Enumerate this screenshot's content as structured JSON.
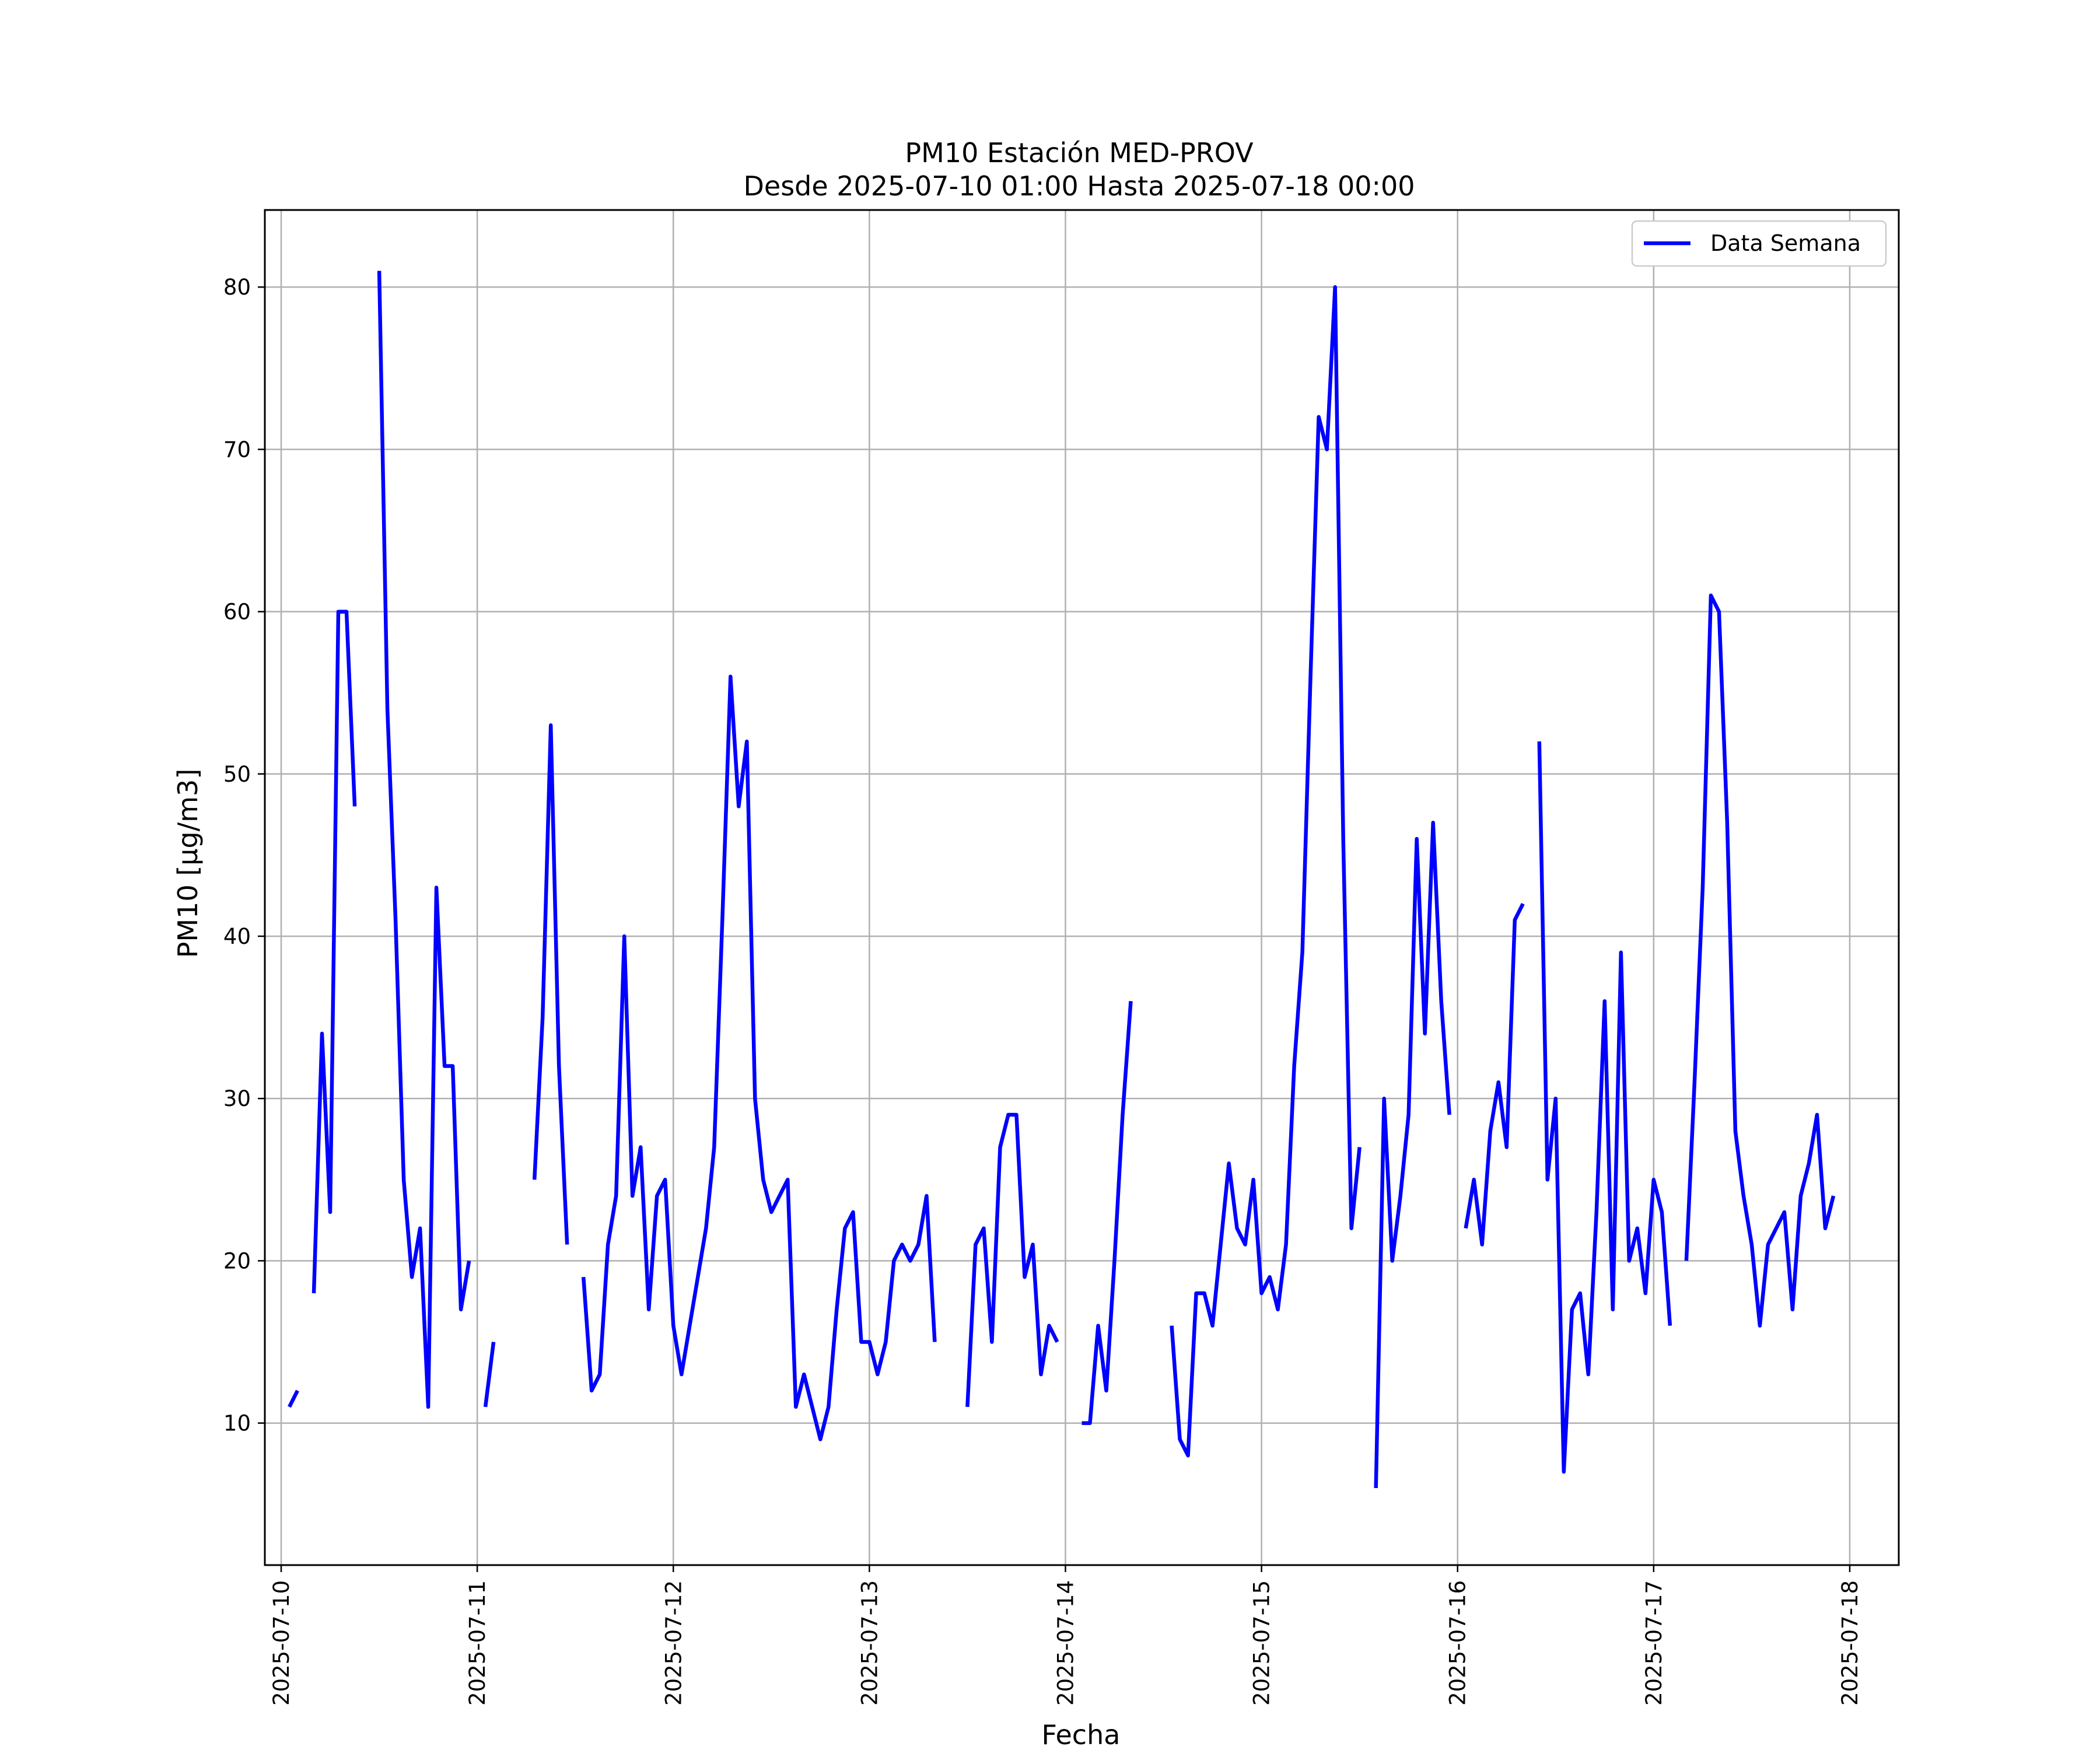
{
  "chart_data": {
    "type": "line",
    "title": "PM10 Estación MED-PROV",
    "subtitle": "Desde 2025-07-10 01:00 Hasta 2025-07-18 00:00",
    "xlabel": "Fecha",
    "ylabel": "PM10 [μg/m3]",
    "xlim": [
      "2025-07-09 22:00",
      "2025-07-18 06:00"
    ],
    "ylim": [
      1.25,
      84.75
    ],
    "x_ticks": [
      "2025-07-10",
      "2025-07-11",
      "2025-07-12",
      "2025-07-13",
      "2025-07-14",
      "2025-07-15",
      "2025-07-16",
      "2025-07-17",
      "2025-07-18"
    ],
    "y_ticks": [
      10,
      20,
      30,
      40,
      50,
      60,
      70,
      80
    ],
    "grid": true,
    "legend_position": "top-right",
    "series": [
      {
        "name": "Data Semana",
        "color": "#0000ff",
        "segments": [
          [
            [
              "2025-07-10 01:00",
              11
            ],
            [
              "2025-07-10 02:00",
              12
            ]
          ],
          [
            [
              "2025-07-10 04:00",
              18
            ],
            [
              "2025-07-10 05:00",
              34
            ],
            [
              "2025-07-10 06:00",
              23
            ],
            [
              "2025-07-10 07:00",
              60
            ],
            [
              "2025-07-10 08:00",
              60
            ],
            [
              "2025-07-10 09:00",
              48
            ]
          ],
          [
            [
              "2025-07-10 12:00",
              81
            ],
            [
              "2025-07-10 13:00",
              54
            ],
            [
              "2025-07-10 14:00",
              41
            ],
            [
              "2025-07-10 15:00",
              25
            ],
            [
              "2025-07-10 16:00",
              19
            ],
            [
              "2025-07-10 17:00",
              22
            ],
            [
              "2025-07-10 18:00",
              11
            ],
            [
              "2025-07-10 19:00",
              43
            ],
            [
              "2025-07-10 20:00",
              32
            ],
            [
              "2025-07-10 21:00",
              32
            ],
            [
              "2025-07-10 22:00",
              17
            ],
            [
              "2025-07-10 23:00",
              20
            ]
          ],
          [
            [
              "2025-07-11 01:00",
              11
            ],
            [
              "2025-07-11 02:00",
              15
            ]
          ],
          [
            [
              "2025-07-11 07:00",
              25
            ],
            [
              "2025-07-11 08:00",
              35
            ],
            [
              "2025-07-11 09:00",
              53
            ],
            [
              "2025-07-11 10:00",
              32
            ],
            [
              "2025-07-11 11:00",
              21
            ]
          ],
          [
            [
              "2025-07-11 13:00",
              19
            ],
            [
              "2025-07-11 14:00",
              12
            ],
            [
              "2025-07-11 15:00",
              13
            ],
            [
              "2025-07-11 16:00",
              21
            ],
            [
              "2025-07-11 17:00",
              24
            ],
            [
              "2025-07-11 18:00",
              40
            ],
            [
              "2025-07-11 19:00",
              24
            ],
            [
              "2025-07-11 20:00",
              27
            ],
            [
              "2025-07-11 21:00",
              17
            ],
            [
              "2025-07-11 22:00",
              24
            ],
            [
              "2025-07-11 23:00",
              25
            ],
            [
              "2025-07-12 00:00",
              16
            ],
            [
              "2025-07-12 01:00",
              13
            ],
            [
              "2025-07-12 02:00",
              16
            ],
            [
              "2025-07-12 03:00",
              19
            ],
            [
              "2025-07-12 04:00",
              22
            ],
            [
              "2025-07-12 05:00",
              27
            ],
            [
              "2025-07-12 06:00",
              41
            ],
            [
              "2025-07-12 07:00",
              56
            ],
            [
              "2025-07-12 08:00",
              48
            ],
            [
              "2025-07-12 09:00",
              52
            ],
            [
              "2025-07-12 10:00",
              30
            ],
            [
              "2025-07-12 11:00",
              25
            ],
            [
              "2025-07-12 12:00",
              23
            ],
            [
              "2025-07-12 13:00",
              24
            ],
            [
              "2025-07-12 14:00",
              25
            ],
            [
              "2025-07-12 15:00",
              11
            ],
            [
              "2025-07-12 16:00",
              13
            ],
            [
              "2025-07-12 17:00",
              11
            ],
            [
              "2025-07-12 18:00",
              9
            ],
            [
              "2025-07-12 19:00",
              11
            ],
            [
              "2025-07-12 20:00",
              17
            ],
            [
              "2025-07-12 21:00",
              22
            ],
            [
              "2025-07-12 22:00",
              23
            ],
            [
              "2025-07-12 23:00",
              15
            ],
            [
              "2025-07-13 00:00",
              15
            ],
            [
              "2025-07-13 01:00",
              13
            ],
            [
              "2025-07-13 02:00",
              15
            ],
            [
              "2025-07-13 03:00",
              20
            ],
            [
              "2025-07-13 04:00",
              21
            ],
            [
              "2025-07-13 05:00",
              20
            ],
            [
              "2025-07-13 06:00",
              21
            ],
            [
              "2025-07-13 07:00",
              24
            ],
            [
              "2025-07-13 08:00",
              15
            ]
          ],
          [
            [
              "2025-07-13 12:00",
              11
            ],
            [
              "2025-07-13 13:00",
              21
            ],
            [
              "2025-07-13 14:00",
              22
            ],
            [
              "2025-07-13 15:00",
              15
            ],
            [
              "2025-07-13 16:00",
              27
            ],
            [
              "2025-07-13 17:00",
              29
            ],
            [
              "2025-07-13 18:00",
              29
            ],
            [
              "2025-07-13 19:00",
              19
            ],
            [
              "2025-07-13 20:00",
              21
            ],
            [
              "2025-07-13 21:00",
              13
            ],
            [
              "2025-07-13 22:00",
              16
            ],
            [
              "2025-07-13 23:00",
              15
            ]
          ],
          [
            [
              "2025-07-14 02:00",
              10
            ],
            [
              "2025-07-14 03:00",
              10
            ],
            [
              "2025-07-14 04:00",
              16
            ],
            [
              "2025-07-14 05:00",
              12
            ],
            [
              "2025-07-14 06:00",
              20
            ],
            [
              "2025-07-14 07:00",
              29
            ],
            [
              "2025-07-14 08:00",
              36
            ]
          ],
          [
            [
              "2025-07-14 13:00",
              16
            ],
            [
              "2025-07-14 14:00",
              9
            ],
            [
              "2025-07-14 15:00",
              8
            ],
            [
              "2025-07-14 16:00",
              18
            ],
            [
              "2025-07-14 17:00",
              18
            ],
            [
              "2025-07-14 18:00",
              16
            ],
            [
              "2025-07-14 19:00",
              21
            ],
            [
              "2025-07-14 20:00",
              26
            ],
            [
              "2025-07-14 21:00",
              22
            ],
            [
              "2025-07-14 22:00",
              21
            ],
            [
              "2025-07-14 23:00",
              25
            ],
            [
              "2025-07-15 00:00",
              18
            ],
            [
              "2025-07-15 01:00",
              19
            ],
            [
              "2025-07-15 02:00",
              17
            ],
            [
              "2025-07-15 03:00",
              21
            ],
            [
              "2025-07-15 04:00",
              32
            ],
            [
              "2025-07-15 05:00",
              39
            ],
            [
              "2025-07-15 06:00",
              56
            ],
            [
              "2025-07-15 07:00",
              72
            ],
            [
              "2025-07-15 08:00",
              70
            ],
            [
              "2025-07-15 09:00",
              80
            ],
            [
              "2025-07-15 10:00",
              46
            ],
            [
              "2025-07-15 11:00",
              22
            ],
            [
              "2025-07-15 12:00",
              27
            ]
          ],
          [
            [
              "2025-07-15 14:00",
              6
            ],
            [
              "2025-07-15 15:00",
              30
            ],
            [
              "2025-07-15 16:00",
              20
            ],
            [
              "2025-07-15 17:00",
              24
            ],
            [
              "2025-07-15 18:00",
              29
            ],
            [
              "2025-07-15 19:00",
              46
            ],
            [
              "2025-07-15 20:00",
              34
            ],
            [
              "2025-07-15 21:00",
              47
            ],
            [
              "2025-07-15 22:00",
              36
            ],
            [
              "2025-07-15 23:00",
              29
            ]
          ],
          [
            [
              "2025-07-16 01:00",
              22
            ],
            [
              "2025-07-16 02:00",
              25
            ],
            [
              "2025-07-16 03:00",
              21
            ],
            [
              "2025-07-16 04:00",
              28
            ],
            [
              "2025-07-16 05:00",
              31
            ],
            [
              "2025-07-16 06:00",
              27
            ],
            [
              "2025-07-16 07:00",
              41
            ],
            [
              "2025-07-16 08:00",
              42
            ]
          ],
          [
            [
              "2025-07-16 10:00",
              52
            ],
            [
              "2025-07-16 11:00",
              25
            ],
            [
              "2025-07-16 12:00",
              30
            ],
            [
              "2025-07-16 13:00",
              7
            ],
            [
              "2025-07-16 14:00",
              17
            ],
            [
              "2025-07-16 15:00",
              18
            ],
            [
              "2025-07-16 16:00",
              13
            ],
            [
              "2025-07-16 17:00",
              23
            ],
            [
              "2025-07-16 18:00",
              36
            ],
            [
              "2025-07-16 19:00",
              17
            ],
            [
              "2025-07-16 20:00",
              39
            ],
            [
              "2025-07-16 21:00",
              20
            ],
            [
              "2025-07-16 22:00",
              22
            ],
            [
              "2025-07-16 23:00",
              18
            ],
            [
              "2025-07-17 00:00",
              25
            ],
            [
              "2025-07-17 01:00",
              23
            ],
            [
              "2025-07-17 02:00",
              16
            ]
          ],
          [
            [
              "2025-07-17 04:00",
              20
            ],
            [
              "2025-07-17 05:00",
              31
            ],
            [
              "2025-07-17 06:00",
              43
            ],
            [
              "2025-07-17 07:00",
              61
            ],
            [
              "2025-07-17 08:00",
              60
            ],
            [
              "2025-07-17 09:00",
              47
            ],
            [
              "2025-07-17 10:00",
              28
            ],
            [
              "2025-07-17 11:00",
              24
            ],
            [
              "2025-07-17 12:00",
              21
            ],
            [
              "2025-07-17 13:00",
              16
            ],
            [
              "2025-07-17 14:00",
              21
            ],
            [
              "2025-07-17 15:00",
              22
            ],
            [
              "2025-07-17 16:00",
              23
            ],
            [
              "2025-07-17 17:00",
              17
            ],
            [
              "2025-07-17 18:00",
              24
            ],
            [
              "2025-07-17 19:00",
              26
            ],
            [
              "2025-07-17 20:00",
              29
            ],
            [
              "2025-07-17 21:00",
              22
            ],
            [
              "2025-07-17 22:00",
              24
            ]
          ]
        ]
      }
    ]
  }
}
